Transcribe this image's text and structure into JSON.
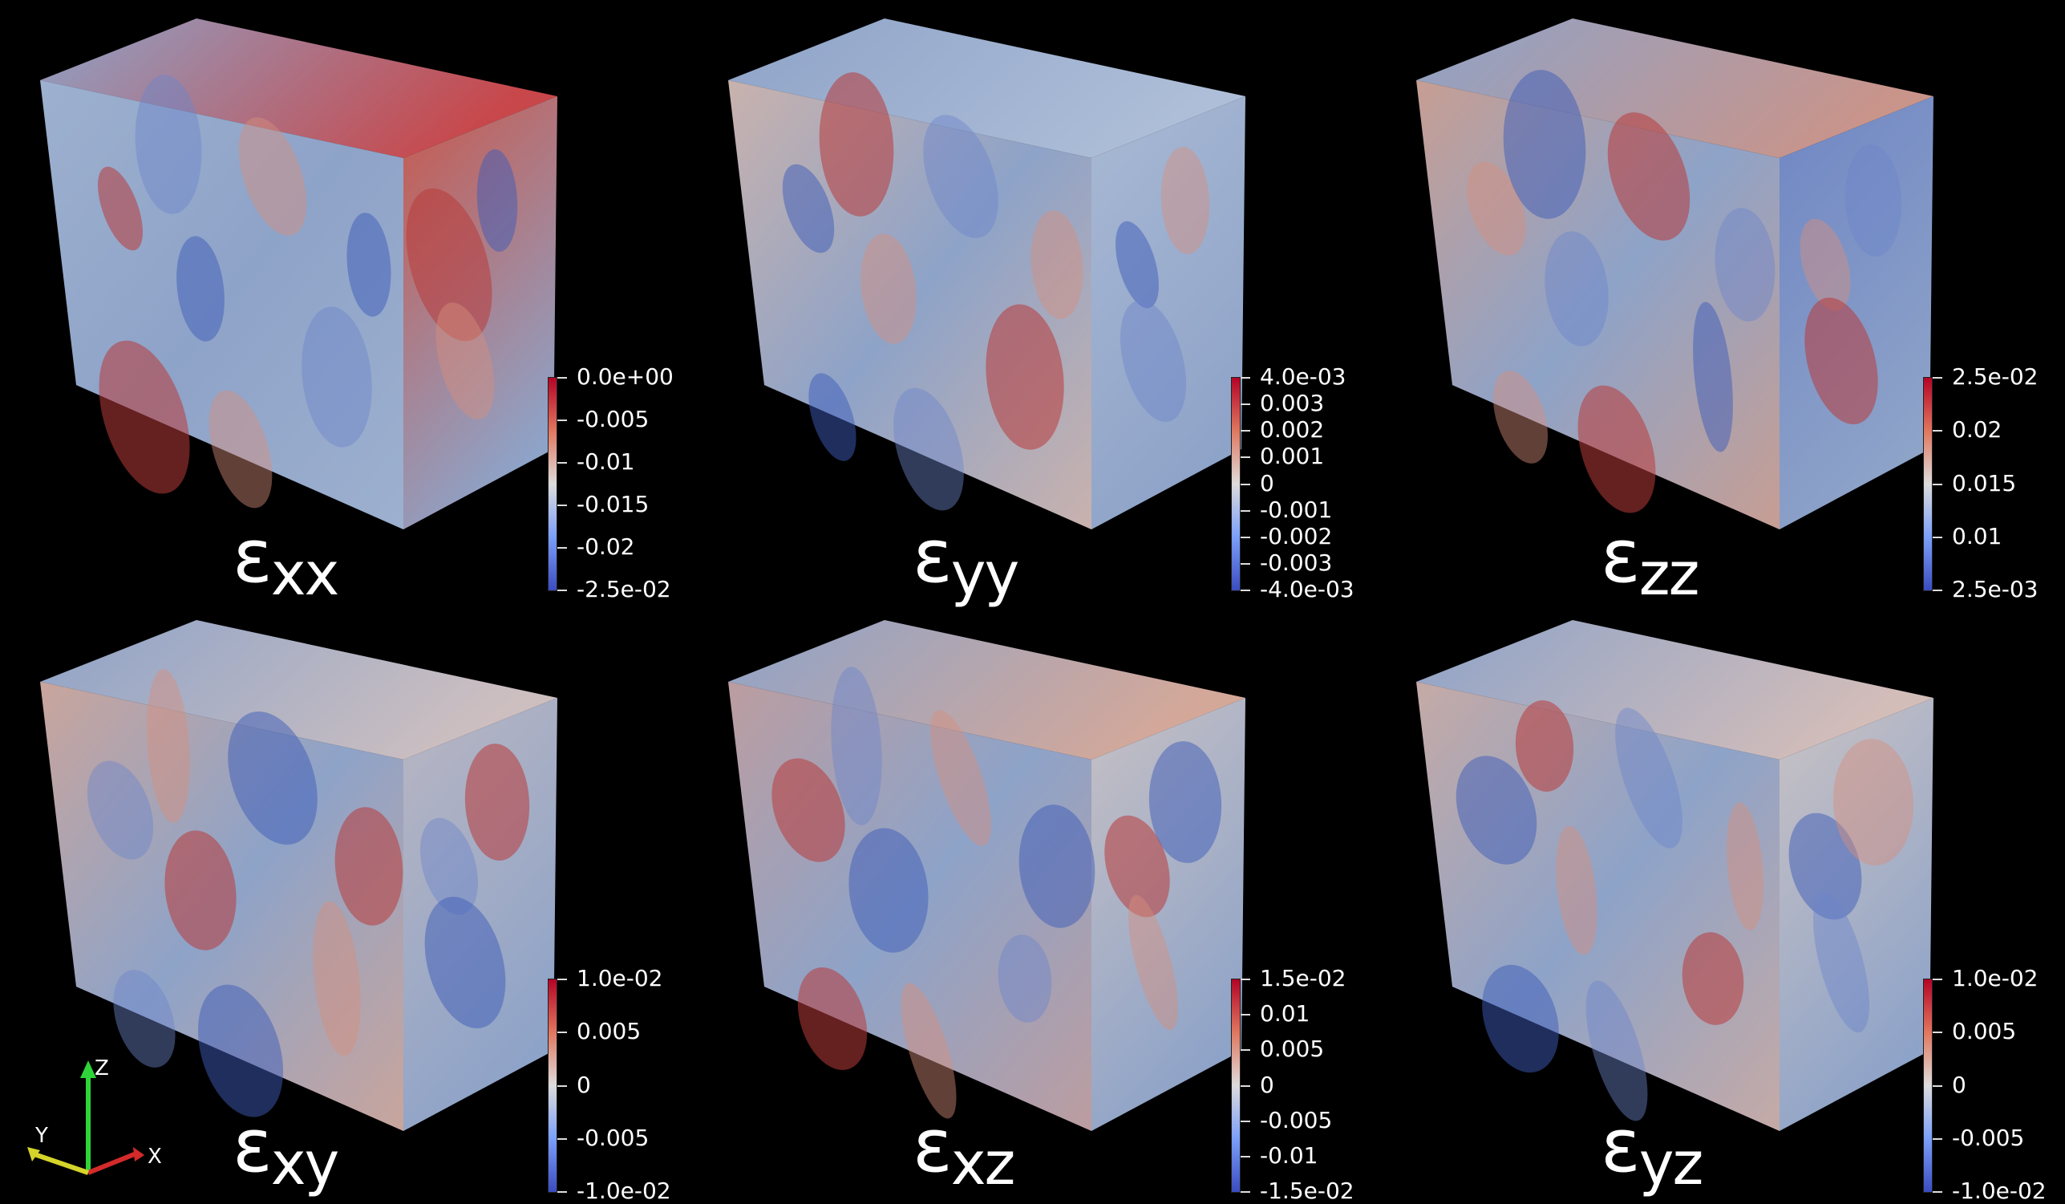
{
  "panels": [
    {
      "id": "exx",
      "symbol": "ε",
      "sub": "xx",
      "ticks": [
        "0.0e+00",
        "-0.005",
        "-0.01",
        "-0.015",
        "-0.02",
        "-2.5e-02"
      ],
      "colors": {
        "top": "#c8474a",
        "mid": "#8ea3c8",
        "front": "#9db0cf",
        "side": "#c8584c"
      }
    },
    {
      "id": "eyy",
      "symbol": "ε",
      "sub": "yy",
      "ticks": [
        "4.0e-03",
        "0.003",
        "0.002",
        "0.001",
        "0",
        "-0.001",
        "-0.002",
        "-0.003",
        "-4.0e-03"
      ],
      "colors": {
        "top": "#aebed8",
        "mid": "#8ea3c8",
        "front": "#c9b2ad",
        "side": "#a9b9d4"
      }
    },
    {
      "id": "ezz",
      "symbol": "ε",
      "sub": "zz",
      "ticks": [
        "2.5e-02",
        "0.02",
        "0.015",
        "0.01",
        "2.5e-03"
      ],
      "colors": {
        "top": "#c9948a",
        "mid": "#8ea3c8",
        "front": "#c79e93",
        "side": "#6f86c4"
      }
    },
    {
      "id": "exy",
      "symbol": "ε",
      "sub": "xy",
      "ticks": [
        "1.0e-02",
        "0.005",
        "0",
        "-0.005",
        "-1.0e-02"
      ],
      "colors": {
        "top": "#cdbfc0",
        "mid": "#8ea3c8",
        "front": "#c9a59c",
        "side": "#b9b6c2"
      }
    },
    {
      "id": "exz",
      "symbol": "ε",
      "sub": "xz",
      "ticks": [
        "1.5e-02",
        "0.01",
        "0.005",
        "0",
        "-0.005",
        "-0.01",
        "-1.5e-02"
      ],
      "colors": {
        "top": "#d4a899",
        "mid": "#8ea3c8",
        "front": "#bc9da0",
        "side": "#c6c0c4"
      }
    },
    {
      "id": "eyz",
      "symbol": "ε",
      "sub": "yz",
      "ticks": [
        "1.0e-02",
        "0.005",
        "0",
        "-0.005",
        "-1.0e-02"
      ],
      "colors": {
        "top": "#d3bdb9",
        "mid": "#8ea3c8",
        "front": "#c5aaa6",
        "side": "#c9c2c4"
      }
    }
  ],
  "orientation_axes": {
    "x": "X",
    "y": "Y",
    "z": "Z"
  }
}
